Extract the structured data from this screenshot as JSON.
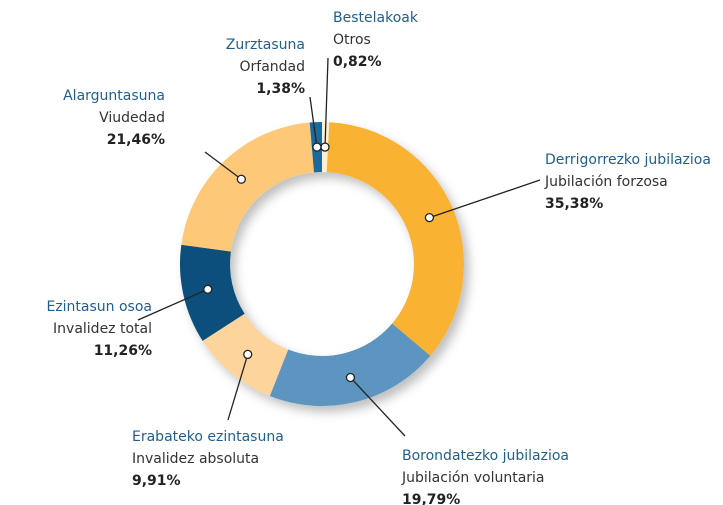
{
  "chart_data": {
    "type": "donut",
    "categories": [
      "Bestelakoak",
      "Derrigorrezko jubilazioa",
      "Borondatezko jubilazioa",
      "Erabateko ezintasuna",
      "Ezintasun osoa",
      "Alarguntasuna",
      "Zurztasuna"
    ],
    "translations": [
      "Otros",
      "Jubilación forzosa",
      "Jubilación voluntaria",
      "Invalidez absoluta",
      "Invalidez total",
      "Viudedad",
      "Orfandad"
    ],
    "values": [
      0.82,
      35.38,
      19.79,
      9.91,
      11.26,
      21.46,
      1.38
    ],
    "value_labels": [
      "0,82%",
      "35,38%",
      "19,79%",
      "9,91%",
      "11,26%",
      "21,46%",
      "1,38%"
    ],
    "colors": [
      "#fbf0d6",
      "#f9b233",
      "#5b95bf",
      "#fdd59c",
      "#0b4f7c",
      "#fdc979",
      "#1b6b9b"
    ]
  }
}
